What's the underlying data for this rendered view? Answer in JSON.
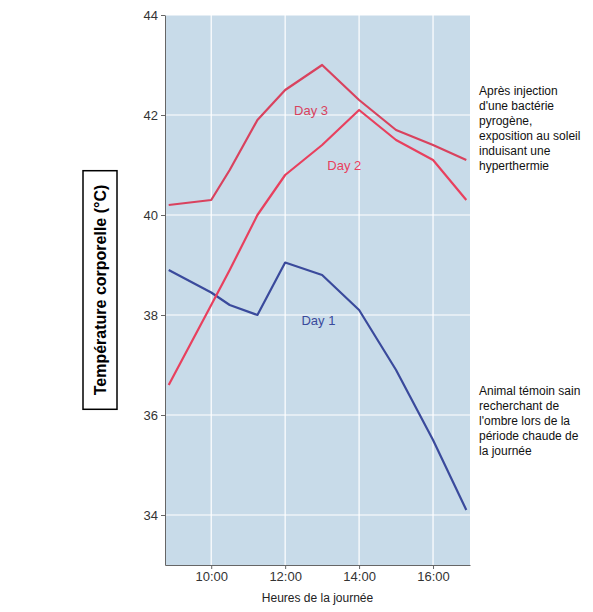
{
  "chart_data": {
    "type": "line",
    "x_label": "Heures de la journée",
    "y_label": "Température corporelle (°C)",
    "x": [
      8.85,
      10,
      10.5,
      11.25,
      12,
      13,
      14,
      15,
      16,
      16.9
    ],
    "series": [
      {
        "name": "Day 1",
        "color": "#3a4a9c",
        "values": [
          38.9,
          38.45,
          38.2,
          38.0,
          39.05,
          38.8,
          38.1,
          36.9,
          35.5,
          34.1
        ]
      },
      {
        "name": "Day 2",
        "color": "#e8405e",
        "values": [
          36.6,
          38.2,
          38.9,
          40.0,
          40.8,
          41.4,
          42.1,
          41.5,
          41.1,
          40.3
        ]
      },
      {
        "name": "Day 3",
        "color": "#d9425e",
        "values": [
          40.2,
          40.3,
          40.9,
          41.9,
          42.5,
          43.0,
          42.3,
          41.7,
          41.4,
          41.1
        ]
      }
    ],
    "xlim": [
      8.75,
      17
    ],
    "ylim": [
      33,
      44
    ],
    "xticks": [
      {
        "value": 10,
        "label": "10:00"
      },
      {
        "value": 12,
        "label": "12:00"
      },
      {
        "value": 14,
        "label": "14:00"
      },
      {
        "value": 16,
        "label": "16:00"
      }
    ],
    "yticks": [
      34,
      36,
      38,
      40,
      42,
      44
    ],
    "grid": true,
    "annotations": [
      "Après injection d'une bactérie pyrogène, exposition au soleil induisant une hyperthermie",
      "Animal témoin sain recherchant de l'ombre lors de la période chaude de la journée"
    ]
  }
}
